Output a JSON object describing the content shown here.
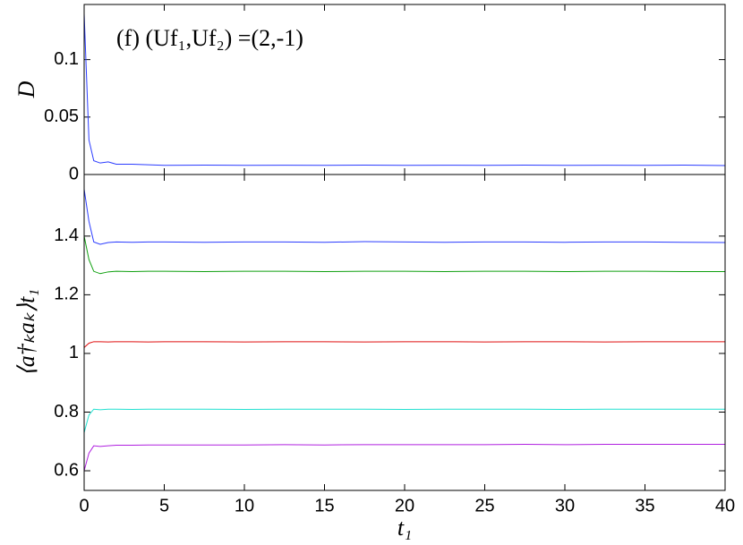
{
  "chart_data": [
    {
      "type": "line",
      "ylabel": "D",
      "annotation": "(f) (Uf₁,Uf₂) =(2,-1)",
      "x": [
        0,
        0.3,
        0.6,
        1,
        1.5,
        2,
        3,
        4,
        5,
        7.5,
        10,
        12.5,
        15,
        17.5,
        20,
        22.5,
        25,
        27.5,
        30,
        32.5,
        35,
        37.5,
        40
      ],
      "series": [
        {
          "color": "#2b3cff",
          "values": [
            0.14,
            0.03,
            0.012,
            0.01,
            0.011,
            0.009,
            0.009,
            0.0085,
            0.008,
            0.0082,
            0.008,
            0.0081,
            0.008,
            0.0082,
            0.008,
            0.0081,
            0.008,
            0.0082,
            0.008,
            0.0081,
            0.008,
            0.0082,
            0.0078
          ]
        }
      ],
      "xlim": [
        0,
        40
      ],
      "xticks": [
        0,
        5,
        10,
        15,
        20,
        25,
        30,
        35,
        40
      ],
      "ylim": [
        0,
        0.148
      ],
      "yticks": [
        0,
        0.05,
        0.1
      ]
    },
    {
      "type": "line",
      "ylabel": "⟨a†ₖaₖ⟩t₁",
      "xlabel": "t₁",
      "x": [
        0,
        0.3,
        0.6,
        1,
        1.5,
        2,
        3,
        4,
        5,
        7.5,
        10,
        12.5,
        15,
        17.5,
        20,
        22.5,
        25,
        27.5,
        30,
        32.5,
        35,
        37.5,
        40
      ],
      "series": [
        {
          "color": "#2b3cff",
          "values": [
            1.56,
            1.45,
            1.38,
            1.372,
            1.378,
            1.38,
            1.379,
            1.38,
            1.38,
            1.379,
            1.38,
            1.38,
            1.379,
            1.381,
            1.38,
            1.379,
            1.38,
            1.38,
            1.379,
            1.38,
            1.38,
            1.379,
            1.378
          ]
        },
        {
          "color": "#10a010",
          "values": [
            1.4,
            1.32,
            1.28,
            1.272,
            1.278,
            1.28,
            1.279,
            1.28,
            1.28,
            1.279,
            1.28,
            1.28,
            1.279,
            1.28,
            1.28,
            1.279,
            1.28,
            1.28,
            1.279,
            1.28,
            1.28,
            1.279,
            1.279
          ]
        },
        {
          "color": "#e01010",
          "values": [
            1.02,
            1.035,
            1.04,
            1.04,
            1.039,
            1.04,
            1.04,
            1.039,
            1.04,
            1.04,
            1.039,
            1.04,
            1.04,
            1.039,
            1.04,
            1.04,
            1.039,
            1.04,
            1.04,
            1.039,
            1.04,
            1.04,
            1.04
          ]
        },
        {
          "color": "#20e0d0",
          "values": [
            0.73,
            0.79,
            0.81,
            0.808,
            0.81,
            0.81,
            0.809,
            0.81,
            0.81,
            0.81,
            0.809,
            0.81,
            0.81,
            0.81,
            0.809,
            0.81,
            0.81,
            0.81,
            0.809,
            0.81,
            0.81,
            0.81,
            0.81
          ]
        },
        {
          "color": "#b020e0",
          "values": [
            0.6,
            0.66,
            0.685,
            0.683,
            0.685,
            0.687,
            0.687,
            0.688,
            0.688,
            0.688,
            0.688,
            0.689,
            0.688,
            0.689,
            0.689,
            0.689,
            0.689,
            0.69,
            0.689,
            0.69,
            0.69,
            0.69,
            0.69
          ]
        }
      ],
      "xlim": [
        0,
        40
      ],
      "xticks": [
        0,
        5,
        10,
        15,
        20,
        25,
        30,
        35,
        40
      ],
      "ylim": [
        0.533,
        1.61
      ],
      "yticks": [
        0.6,
        0.8,
        1,
        1.2,
        1.4
      ]
    }
  ]
}
